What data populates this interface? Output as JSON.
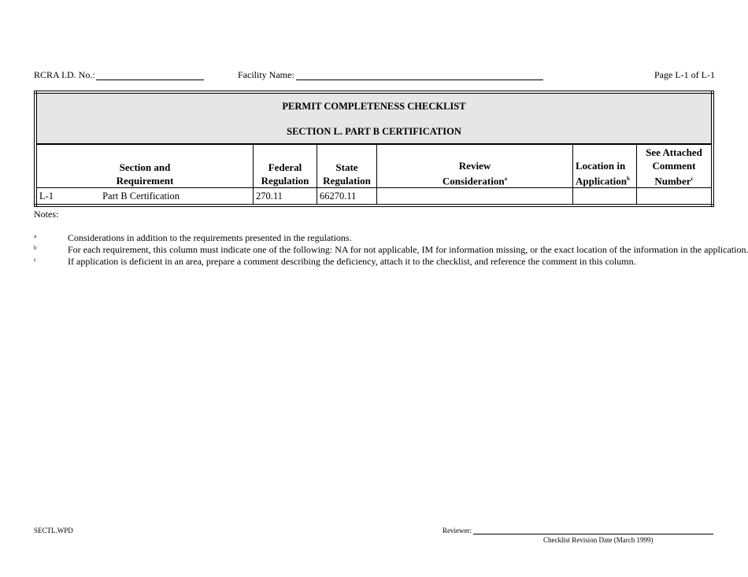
{
  "header": {
    "rcra_label": "RCRA I.D. No.:",
    "facility_label": "Facility Name:",
    "page": "Page L-1 of L-1"
  },
  "table": {
    "title": "PERMIT COMPLETENESS CHECKLIST",
    "subtitle": "SECTION L.  PART B CERTIFICATION",
    "columns": [
      {
        "line1": "Section and",
        "line2": "Requirement",
        "sup": ""
      },
      {
        "line1": "Federal",
        "line2": "Regulation",
        "sup": ""
      },
      {
        "line1": "State",
        "line2": "Regulation",
        "sup": ""
      },
      {
        "line1": "Review",
        "line2": "Consideration",
        "sup": "a"
      },
      {
        "line1": "Location in",
        "line2": "Application",
        "sup": "b"
      },
      {
        "line0": "See Attached",
        "line1": "Comment",
        "line2": "Number",
        "sup": "c"
      }
    ],
    "rows": [
      {
        "id": "L-1",
        "requirement": "Part B Certification",
        "federal": "270.11",
        "state": "66270.11",
        "review": "",
        "location": "",
        "comment": ""
      }
    ]
  },
  "notes": {
    "label": "Notes:",
    "items": [
      {
        "mark": "a",
        "text": "Considerations in addition to the requirements presented in the regulations."
      },
      {
        "mark": "b",
        "text": "For each requirement, this column must indicate one of the following: NA for not applicable, IM for information missing, or the exact location of the information in the application."
      },
      {
        "mark": "c",
        "text": "If application is deficient in an area, prepare a comment describing the deficiency, attach it to the checklist, and reference the comment in this column."
      }
    ]
  },
  "footer": {
    "file": "SECTL.WPD",
    "reviewer_label": "Reviewer:",
    "revision": "Checklist Revision Date (March 1999)"
  }
}
